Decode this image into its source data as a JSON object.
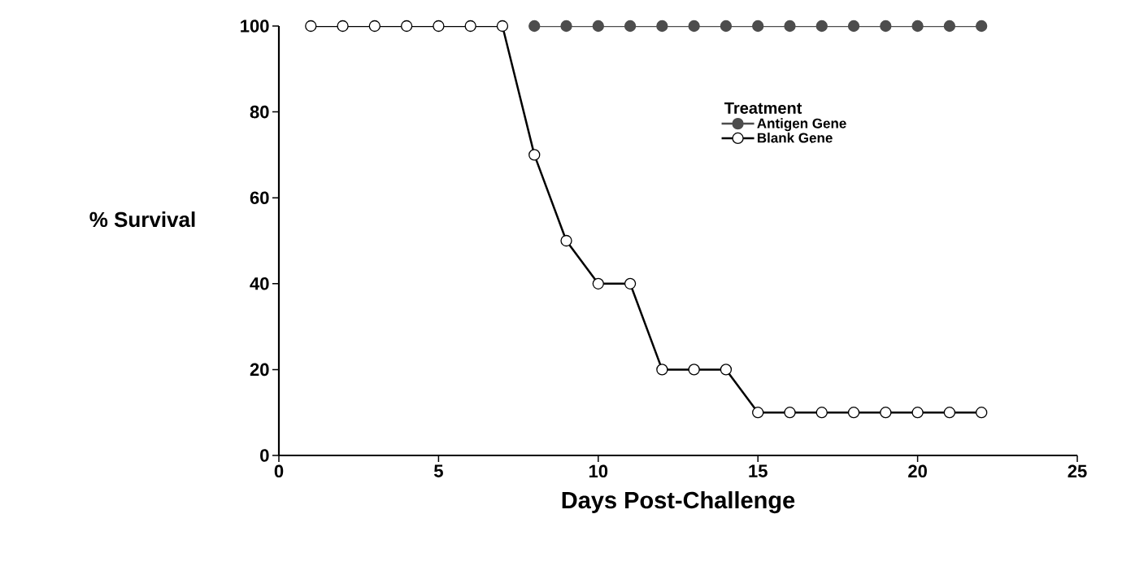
{
  "chart_data": {
    "type": "line",
    "xlabel": "Days Post-Challenge",
    "ylabel": "% Survival",
    "legend_title": "Treatment",
    "x": [
      1,
      2,
      3,
      4,
      5,
      6,
      7,
      8,
      9,
      10,
      11,
      12,
      13,
      14,
      15,
      16,
      17,
      18,
      19,
      20,
      21,
      22
    ],
    "series": [
      {
        "name": "Antigen Gene",
        "color": "#4d4d4d",
        "values": [
          null,
          null,
          null,
          null,
          null,
          null,
          null,
          100,
          100,
          100,
          100,
          100,
          100,
          100,
          100,
          100,
          100,
          100,
          100,
          100,
          100,
          100
        ]
      },
      {
        "name": "Blank Gene",
        "color": "#000000",
        "values": [
          100,
          100,
          100,
          100,
          100,
          100,
          100,
          70,
          50,
          40,
          40,
          20,
          20,
          20,
          10,
          10,
          10,
          10,
          10,
          10,
          10,
          10
        ]
      }
    ],
    "xlim": [
      0,
      25
    ],
    "xticks": [
      0,
      5,
      10,
      15,
      20,
      25
    ],
    "ylim": [
      0,
      100
    ],
    "yticks": [
      0,
      20,
      40,
      60,
      80,
      100
    ],
    "grid": false,
    "legend": "top right",
    "marker": "circle",
    "line_style": "solid"
  }
}
